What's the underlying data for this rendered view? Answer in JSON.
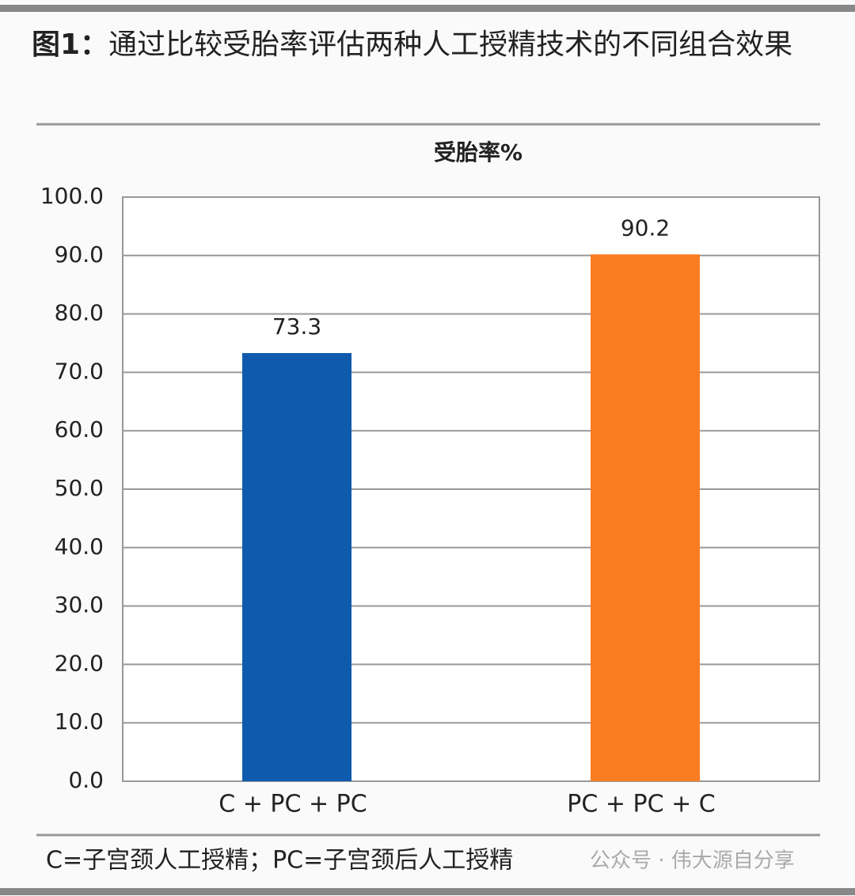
{
  "chart_data": {
    "type": "bar",
    "figure_label": "图1：",
    "title": "通过比较受胎率评估两种人工授精技术的不同组合效果",
    "subtitle": "受胎率%",
    "categories": [
      "C + PC + PC",
      "PC + PC + C"
    ],
    "values": [
      73.3,
      90.2
    ],
    "colors": [
      "#0f5aad",
      "#fb7d22"
    ],
    "ylim": [
      0,
      100
    ],
    "yticks": [
      {
        "value": 0,
        "label": "0.0"
      },
      {
        "value": 10,
        "label": "10.0"
      },
      {
        "value": 20,
        "label": "20.0"
      },
      {
        "value": 30,
        "label": "30.0"
      },
      {
        "value": 40,
        "label": "40.0"
      },
      {
        "value": 50,
        "label": "50.0"
      },
      {
        "value": 60,
        "label": "60.0"
      },
      {
        "value": 70,
        "label": "70.0"
      },
      {
        "value": 80,
        "label": "80.0"
      },
      {
        "value": 90,
        "label": "90.0"
      },
      {
        "value": 100,
        "label": "100.0"
      }
    ],
    "grid": true,
    "footnote": "C=子宫颈人工授精；PC=子宫颈后人工授精",
    "watermark": "公众号 · 伟大源自分享"
  }
}
